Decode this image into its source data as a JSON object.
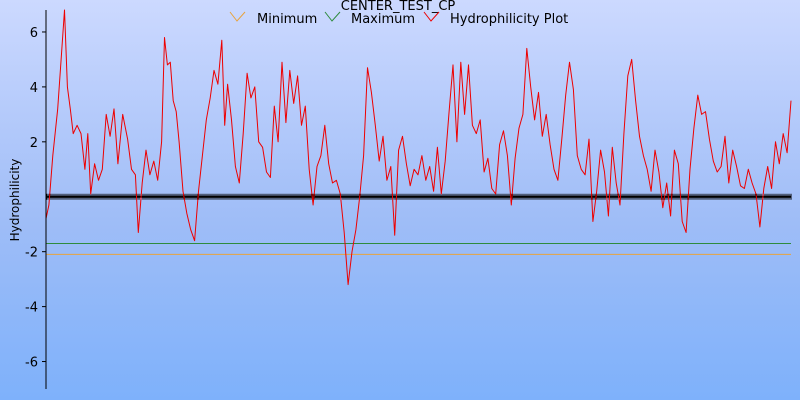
{
  "chart_data": {
    "type": "line",
    "title": "CENTER_TEST_CP",
    "ylabel": "Hydrophilicity",
    "xlabel": "",
    "ylim": [
      -7,
      6.8
    ],
    "yticks": [
      -6,
      -4,
      -2,
      2,
      4,
      6
    ],
    "xlim": [
      1,
      768
    ],
    "legend_placement": "top-center",
    "series": [
      {
        "name": "Minimum",
        "type": "constant",
        "value": -2.1,
        "color": "#e8a33c"
      },
      {
        "name": "Maximum",
        "type": "constant",
        "value": -1.7,
        "color": "#2e8b3d"
      },
      {
        "name": "Hydrophilicity Plot",
        "type": "line",
        "color": "#ee0000",
        "points": [
          [
            1,
            -0.8
          ],
          [
            4,
            -0.3
          ],
          [
            8,
            1.5
          ],
          [
            13,
            3.2
          ],
          [
            17,
            5.2
          ],
          [
            20,
            6.8
          ],
          [
            23,
            4.0
          ],
          [
            26,
            3.2
          ],
          [
            29,
            2.3
          ],
          [
            33,
            2.6
          ],
          [
            37,
            2.3
          ],
          [
            41,
            1.0
          ],
          [
            44,
            2.3
          ],
          [
            47,
            0.1
          ],
          [
            51,
            1.2
          ],
          [
            55,
            0.6
          ],
          [
            59,
            1.0
          ],
          [
            63,
            3.0
          ],
          [
            67,
            2.2
          ],
          [
            71,
            3.2
          ],
          [
            75,
            1.2
          ],
          [
            80,
            3.0
          ],
          [
            85,
            2.1
          ],
          [
            89,
            1.0
          ],
          [
            93,
            0.8
          ],
          [
            96,
            -1.3
          ],
          [
            100,
            0.5
          ],
          [
            104,
            1.7
          ],
          [
            108,
            0.8
          ],
          [
            112,
            1.3
          ],
          [
            116,
            0.6
          ],
          [
            120,
            2.0
          ],
          [
            123,
            5.8
          ],
          [
            126,
            4.8
          ],
          [
            129,
            4.9
          ],
          [
            132,
            3.5
          ],
          [
            135,
            3.1
          ],
          [
            138,
            2.0
          ],
          [
            142,
            0.2
          ],
          [
            146,
            -0.6
          ],
          [
            150,
            -1.2
          ],
          [
            154,
            -1.6
          ],
          [
            158,
            0.2
          ],
          [
            162,
            1.5
          ],
          [
            166,
            2.8
          ],
          [
            170,
            3.6
          ],
          [
            174,
            4.6
          ],
          [
            178,
            4.1
          ],
          [
            182,
            5.7
          ],
          [
            185,
            2.6
          ],
          [
            188,
            4.1
          ],
          [
            192,
            2.8
          ],
          [
            196,
            1.1
          ],
          [
            200,
            0.5
          ],
          [
            204,
            2.3
          ],
          [
            208,
            4.5
          ],
          [
            212,
            3.6
          ],
          [
            216,
            4.0
          ],
          [
            220,
            2.0
          ],
          [
            224,
            1.8
          ],
          [
            228,
            0.9
          ],
          [
            232,
            0.7
          ],
          [
            236,
            3.3
          ],
          [
            240,
            2.0
          ],
          [
            244,
            4.9
          ],
          [
            248,
            2.7
          ],
          [
            252,
            4.6
          ],
          [
            256,
            3.4
          ],
          [
            260,
            4.4
          ],
          [
            264,
            2.6
          ],
          [
            268,
            3.3
          ],
          [
            272,
            1.0
          ],
          [
            276,
            -0.3
          ],
          [
            280,
            1.1
          ],
          [
            284,
            1.5
          ],
          [
            288,
            2.6
          ],
          [
            292,
            1.2
          ],
          [
            296,
            0.5
          ],
          [
            300,
            0.6
          ],
          [
            304,
            0.1
          ],
          [
            308,
            -1.3
          ],
          [
            312,
            -3.2
          ],
          [
            316,
            -2.0
          ],
          [
            320,
            -1.2
          ],
          [
            324,
            0.0
          ],
          [
            328,
            1.5
          ],
          [
            332,
            4.7
          ],
          [
            336,
            3.8
          ],
          [
            340,
            2.6
          ],
          [
            344,
            1.3
          ],
          [
            348,
            2.2
          ],
          [
            352,
            0.6
          ],
          [
            356,
            1.1
          ],
          [
            360,
            -1.4
          ],
          [
            364,
            1.7
          ],
          [
            368,
            2.2
          ],
          [
            372,
            1.2
          ],
          [
            376,
            0.4
          ],
          [
            380,
            1.0
          ],
          [
            384,
            0.8
          ],
          [
            388,
            1.5
          ],
          [
            392,
            0.6
          ],
          [
            396,
            1.1
          ],
          [
            400,
            0.2
          ],
          [
            404,
            1.8
          ],
          [
            408,
            0.1
          ],
          [
            412,
            1.3
          ],
          [
            416,
            3.1
          ],
          [
            420,
            4.8
          ],
          [
            424,
            2.0
          ],
          [
            428,
            4.9
          ],
          [
            432,
            3.0
          ],
          [
            436,
            4.8
          ],
          [
            440,
            2.6
          ],
          [
            444,
            2.3
          ],
          [
            448,
            2.8
          ],
          [
            452,
            0.9
          ],
          [
            456,
            1.4
          ],
          [
            460,
            0.3
          ],
          [
            464,
            0.1
          ],
          [
            468,
            1.9
          ],
          [
            472,
            2.4
          ],
          [
            476,
            1.5
          ],
          [
            480,
            -0.3
          ],
          [
            484,
            1.4
          ],
          [
            488,
            2.5
          ],
          [
            492,
            3.0
          ],
          [
            496,
            5.4
          ],
          [
            500,
            4.0
          ],
          [
            504,
            2.8
          ],
          [
            508,
            3.8
          ],
          [
            512,
            2.2
          ],
          [
            516,
            3.0
          ],
          [
            520,
            1.9
          ],
          [
            524,
            1.0
          ],
          [
            528,
            0.6
          ],
          [
            532,
            2.1
          ],
          [
            536,
            3.7
          ],
          [
            540,
            4.9
          ],
          [
            544,
            3.9
          ],
          [
            548,
            1.5
          ],
          [
            552,
            1.0
          ],
          [
            556,
            0.8
          ],
          [
            560,
            2.1
          ],
          [
            564,
            -0.9
          ],
          [
            568,
            0.2
          ],
          [
            572,
            1.7
          ],
          [
            576,
            0.9
          ],
          [
            580,
            -0.7
          ],
          [
            584,
            1.8
          ],
          [
            588,
            0.5
          ],
          [
            592,
            -0.3
          ],
          [
            596,
            2.3
          ],
          [
            600,
            4.4
          ],
          [
            604,
            5.0
          ],
          [
            608,
            3.5
          ],
          [
            612,
            2.2
          ],
          [
            616,
            1.5
          ],
          [
            620,
            1.0
          ],
          [
            624,
            0.2
          ],
          [
            628,
            1.7
          ],
          [
            632,
            0.9
          ],
          [
            636,
            -0.4
          ],
          [
            640,
            0.5
          ],
          [
            644,
            -0.7
          ],
          [
            648,
            1.7
          ],
          [
            652,
            1.2
          ],
          [
            656,
            -0.9
          ],
          [
            660,
            -1.3
          ],
          [
            664,
            1.0
          ],
          [
            668,
            2.5
          ],
          [
            672,
            3.7
          ],
          [
            676,
            3.0
          ],
          [
            680,
            3.1
          ],
          [
            684,
            2.1
          ],
          [
            688,
            1.3
          ],
          [
            692,
            0.9
          ],
          [
            696,
            1.1
          ],
          [
            700,
            2.2
          ],
          [
            704,
            0.5
          ],
          [
            708,
            1.7
          ],
          [
            712,
            1.1
          ],
          [
            716,
            0.4
          ],
          [
            720,
            0.3
          ],
          [
            724,
            1.0
          ],
          [
            728,
            0.5
          ],
          [
            732,
            0.1
          ],
          [
            736,
            -1.1
          ],
          [
            740,
            0.3
          ],
          [
            744,
            1.1
          ],
          [
            748,
            0.3
          ],
          [
            752,
            2.0
          ],
          [
            756,
            1.2
          ],
          [
            760,
            2.3
          ],
          [
            764,
            1.6
          ],
          [
            768,
            3.5
          ]
        ]
      },
      {
        "name": "",
        "type": "constant-markers",
        "value": 0,
        "color": "#000000"
      }
    ]
  }
}
